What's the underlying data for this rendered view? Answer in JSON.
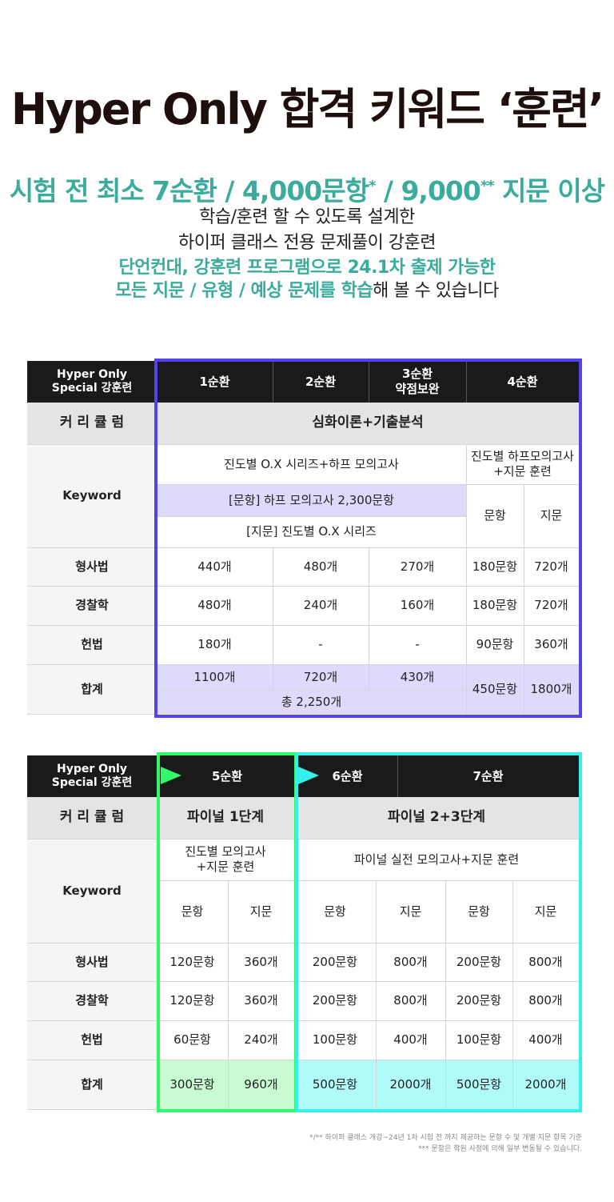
{
  "header": {
    "title": "Hyper Only 합격 키워드 ‘훈련’",
    "stats_a": "시험 전 최소 7순환 / 4,000문항",
    "stats_mark1": "*",
    "stats_b": " / 9,000",
    "stats_mark2": "**",
    "stats_c": " 지문 이상",
    "line2": "학습/훈련 할 수 있도록 설계한",
    "line3": "하이퍼 클래스 전용 문제풀이 강훈련",
    "line4": "단언컨대, 강훈련 프로그램으로 24.1차 출제 가능한",
    "line5_hl": "모든 지문 / 유형 / 예상 문제를 학습",
    "line5_rest": "해 볼 수 있습니다"
  },
  "colors": {
    "accent": "#3aab9c",
    "frame_purple": "#5243ee",
    "frame_green": "#2efa6a",
    "frame_cyan": "#37f0ee",
    "header_dark": "#1a1a1a"
  },
  "table1": {
    "corner": [
      "Hyper Only",
      "Special 강훈련"
    ],
    "cols": [
      "1순환",
      "2순환",
      "3순환",
      "약점보완",
      "4순환"
    ],
    "curriculum_label": "커 리 큘 럼",
    "curriculum": "심화이론+기출분석",
    "keyword_label": "Keyword",
    "kw_main": "진도별 O.X 시리즈+하프 모의고사",
    "kw_4a": "진도별 하프모의고사",
    "kw_4b": "+지문 훈련",
    "kw_sub1": "[문항] 하프 모의고사 2,300문항",
    "kw_sub2": "[지문] 진도별 O.X 시리즈",
    "sub_q": "문항",
    "sub_p": "지문",
    "rows": [
      {
        "label": "형사법",
        "c1": "440개",
        "c2": "480개",
        "c3": "270개",
        "q": "180문항",
        "p": "720개"
      },
      {
        "label": "경찰학",
        "c1": "480개",
        "c2": "240개",
        "c3": "160개",
        "q": "180문항",
        "p": "720개"
      },
      {
        "label": "헌법",
        "c1": "180개",
        "c2": "-",
        "c3": "-",
        "q": "90문항",
        "p": "360개"
      }
    ],
    "total_label": "합계",
    "total": {
      "c1": "1100개",
      "c2": "720개",
      "c3": "430개",
      "q": "450문항",
      "p": "1800개",
      "sum": "총 2,250개"
    }
  },
  "table2": {
    "corner": [
      "Hyper Only",
      "Special 강훈련"
    ],
    "cols": [
      "5순환",
      "6순환",
      "7순환"
    ],
    "curriculum_label": "커 리 큘 럼",
    "cur5": "파이널 1단계",
    "cur67": "파이널 2+3단계",
    "keyword_label": "Keyword",
    "kw5a": "진도별 모의고사",
    "kw5b": "+지문 훈련",
    "kw67": "파이널 실전 모의고사+지문 훈련",
    "sub_q": "문항",
    "sub_p": "지문",
    "rows": [
      {
        "label": "형사법",
        "q5": "120문항",
        "p5": "360개",
        "q6": "200문항",
        "p6": "800개",
        "q7": "200문항",
        "p7": "800개"
      },
      {
        "label": "경찰학",
        "q5": "120문항",
        "p5": "360개",
        "q6": "200문항",
        "p6": "800개",
        "q7": "200문항",
        "p7": "800개"
      },
      {
        "label": "헌법",
        "q5": "60문항",
        "p5": "240개",
        "q6": "100문항",
        "p6": "400개",
        "q7": "100문항",
        "p7": "400개"
      }
    ],
    "total_label": "합계",
    "total": {
      "q5": "300문항",
      "p5": "960개",
      "q6": "500문항",
      "p6": "2000개",
      "q7": "500문항",
      "p7": "2000개"
    }
  },
  "footnote": {
    "line1": "*/** 하이퍼 클래스 개강~24년 1차 시험 전 까지 제공하는 문항 수 및 개별 지문 항목 기준",
    "line2": "*** 문항은 학원 사정에 의해 일부 변동될 수 있습니다."
  }
}
